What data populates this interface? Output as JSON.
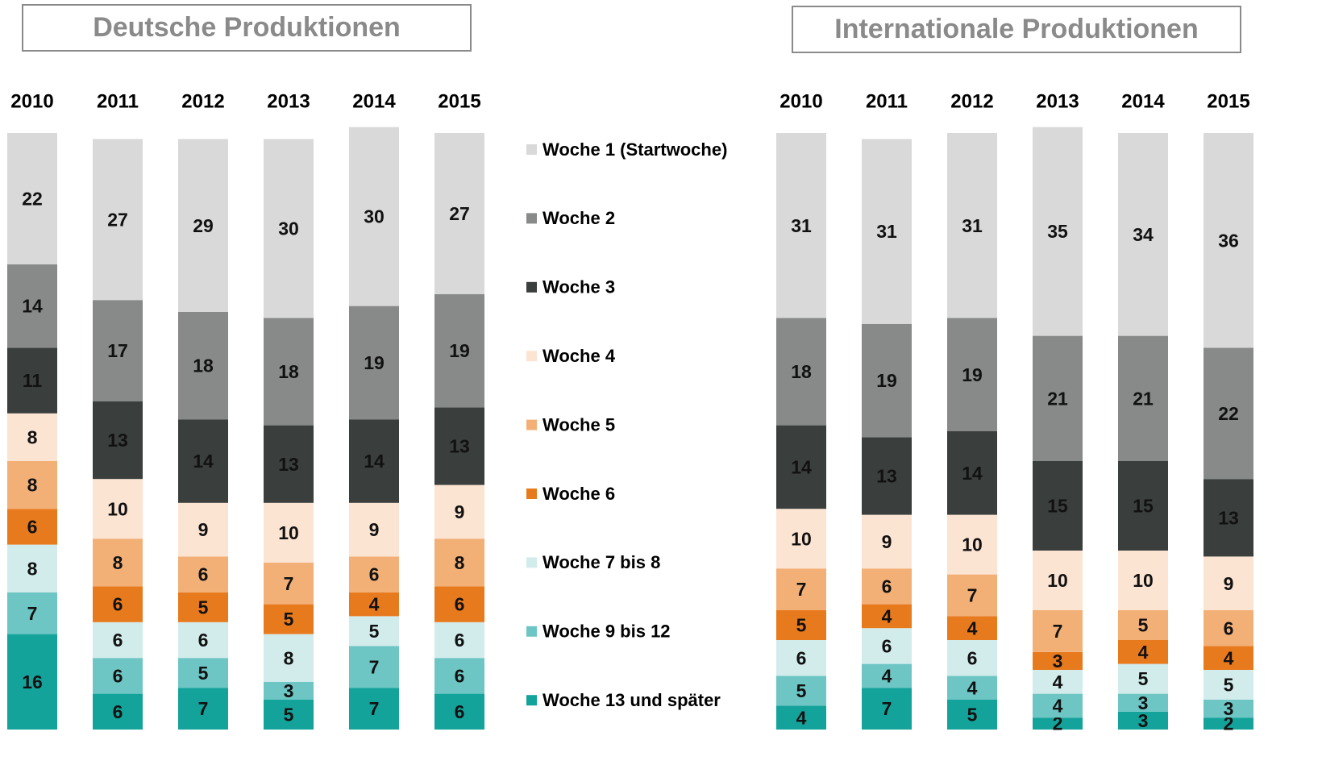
{
  "legend": [
    {
      "name": "Woche 1 (Startwoche)",
      "color": "#d9d9d9"
    },
    {
      "name": "Woche 2",
      "color": "#878a89"
    },
    {
      "name": "Woche 3",
      "color": "#3a3e3d"
    },
    {
      "name": "Woche 4",
      "color": "#fce4d3"
    },
    {
      "name": "Woche 5",
      "color": "#f2b077"
    },
    {
      "name": "Woche 6",
      "color": "#e87a1e"
    },
    {
      "name": "Woche 7 bis 8",
      "color": "#d2ecec"
    },
    {
      "name": "Woche 9 bis 12",
      "color": "#6dc6c4"
    },
    {
      "name": "Woche 13 und später",
      "color": "#14a39b"
    }
  ],
  "chart_data": [
    {
      "type": "stacked-bar",
      "title": "Deutsche Produktionen",
      "categories": [
        "2010",
        "2011",
        "2012",
        "2013",
        "2014",
        "2015"
      ],
      "series": [
        {
          "values": [
            22,
            27,
            29,
            30,
            30,
            27
          ]
        },
        {
          "values": [
            14,
            17,
            18,
            18,
            19,
            19
          ]
        },
        {
          "values": [
            11,
            13,
            14,
            13,
            14,
            13
          ]
        },
        {
          "values": [
            8,
            10,
            9,
            10,
            9,
            9
          ]
        },
        {
          "values": [
            8,
            8,
            6,
            7,
            6,
            8
          ]
        },
        {
          "values": [
            6,
            6,
            5,
            5,
            4,
            6
          ]
        },
        {
          "values": [
            8,
            6,
            6,
            8,
            5,
            6
          ]
        },
        {
          "values": [
            7,
            6,
            5,
            3,
            7,
            6
          ]
        },
        {
          "values": [
            16,
            6,
            7,
            5,
            7,
            6
          ]
        }
      ]
    },
    {
      "type": "stacked-bar",
      "title": "Internationale Produktionen",
      "categories": [
        "2010",
        "2011",
        "2012",
        "2013",
        "2014",
        "2015"
      ],
      "series": [
        {
          "values": [
            31,
            31,
            31,
            35,
            34,
            36
          ]
        },
        {
          "values": [
            18,
            19,
            19,
            21,
            21,
            22
          ]
        },
        {
          "values": [
            14,
            13,
            14,
            15,
            15,
            13
          ]
        },
        {
          "values": [
            10,
            9,
            10,
            10,
            10,
            9
          ]
        },
        {
          "values": [
            7,
            6,
            7,
            7,
            5,
            6
          ]
        },
        {
          "values": [
            5,
            4,
            4,
            3,
            4,
            4
          ]
        },
        {
          "values": [
            6,
            6,
            6,
            4,
            5,
            5
          ]
        },
        {
          "values": [
            5,
            4,
            4,
            4,
            3,
            3
          ]
        },
        {
          "values": [
            4,
            7,
            5,
            2,
            3,
            2
          ]
        }
      ]
    }
  ]
}
